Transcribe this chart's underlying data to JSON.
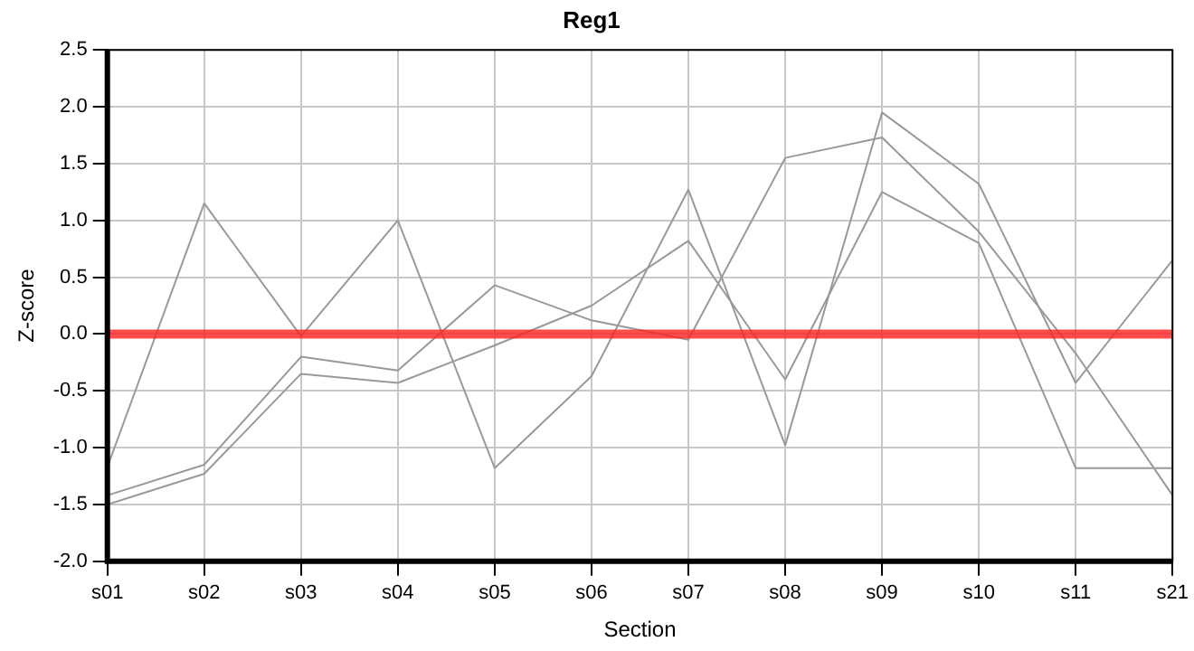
{
  "chart_data": {
    "type": "line",
    "title": "Reg1",
    "xlabel": "Section",
    "ylabel": "Z-score",
    "categories": [
      "s01",
      "s02",
      "s03",
      "s04",
      "s05",
      "s06",
      "s07",
      "s08",
      "s09",
      "s10",
      "s11",
      "s21"
    ],
    "series": [
      {
        "color": "#999999",
        "values": [
          -1.17,
          1.15,
          -0.02,
          1.0,
          -1.18,
          -0.37,
          1.27,
          -0.98,
          1.95,
          1.32,
          -0.43,
          0.65
        ]
      },
      {
        "color": "#999999",
        "values": [
          -1.42,
          -1.15,
          -0.2,
          -0.32,
          0.43,
          0.12,
          -0.05,
          1.55,
          1.73,
          0.9,
          -0.17,
          -1.42
        ]
      },
      {
        "color": "#999999",
        "values": [
          -1.5,
          -1.23,
          -0.35,
          -0.43,
          -0.1,
          0.25,
          0.82,
          -0.4,
          1.25,
          0.8,
          -1.18,
          -1.18
        ]
      }
    ],
    "ylim": [
      -2,
      2.5
    ],
    "yticks": [
      {
        "value": -2,
        "label": "-2.0"
      },
      {
        "value": -1.5,
        "label": "-1.5"
      },
      {
        "value": -1,
        "label": "-1.0"
      },
      {
        "value": -0.5,
        "label": "-0.5"
      },
      {
        "value": 0,
        "label": "0.0"
      },
      {
        "value": 0.5,
        "label": "0.5"
      },
      {
        "value": 1,
        "label": "1.0"
      },
      {
        "value": 1.5,
        "label": "1.5"
      },
      {
        "value": 2,
        "label": "2.0"
      },
      {
        "value": 2.5,
        "label": "2.5"
      }
    ],
    "ref_lines": [
      {
        "axis": "y",
        "value": 0,
        "color": "#ff2020"
      }
    ],
    "grid": true,
    "legend": false,
    "marker": "none",
    "line_style": "solid"
  }
}
